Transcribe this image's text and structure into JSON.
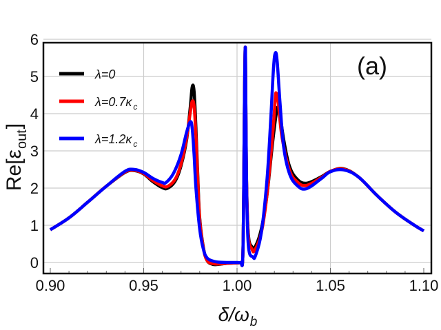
{
  "chart_data": {
    "type": "line",
    "panel_label": "(a)",
    "xlabel": "δ/ω_b",
    "ylabel": "Re[ε_out]",
    "xlim": [
      0.9,
      1.1
    ],
    "ylim": [
      -0.3,
      6
    ],
    "xticks": [
      "0.90",
      "0.95",
      "1.00",
      "1.05",
      "1.10"
    ],
    "yticks": [
      "0",
      "1",
      "2",
      "3",
      "4",
      "5",
      "6"
    ],
    "grid": true,
    "legend_position": "top-left",
    "series": [
      {
        "name": "λ=0",
        "label_main": "λ=0",
        "label_sub": "",
        "color": "#000000",
        "x": [
          0.9,
          0.91,
          0.92,
          0.93,
          0.94,
          0.945,
          0.95,
          0.955,
          0.96,
          0.963,
          0.967,
          0.97,
          0.973,
          0.975,
          0.976,
          0.977,
          0.978,
          0.979,
          0.98,
          0.982,
          0.984,
          0.987,
          0.99,
          0.995,
          1.0,
          1.002,
          1.003,
          1.0035,
          1.004,
          1.0045,
          1.005,
          1.006,
          1.008,
          1.01,
          1.013,
          1.016,
          1.019,
          1.021,
          1.022,
          1.023,
          1.025,
          1.028,
          1.032,
          1.037,
          1.045,
          1.05,
          1.057,
          1.065,
          1.075,
          1.085,
          1.095,
          1.1
        ],
        "y": [
          0.88,
          1.2,
          1.62,
          2.05,
          2.42,
          2.47,
          2.38,
          2.17,
          2.01,
          2.0,
          2.2,
          2.6,
          3.3,
          4.2,
          4.72,
          4.6,
          3.6,
          2.3,
          1.2,
          0.4,
          0.05,
          -0.05,
          -0.05,
          -0.02,
          -0.01,
          0,
          0.05,
          1.5,
          4.5,
          5.7,
          2.5,
          0.8,
          0.42,
          0.45,
          0.9,
          1.8,
          3.2,
          4.0,
          4.18,
          4.0,
          3.3,
          2.6,
          2.25,
          2.13,
          2.3,
          2.45,
          2.52,
          2.3,
          1.8,
          1.35,
          1.0,
          0.85
        ]
      },
      {
        "name": "λ=0.7κ_c",
        "label_main": "λ=0.7κ",
        "label_sub": "c",
        "color": "#ff0000",
        "x": [
          0.9,
          0.91,
          0.92,
          0.93,
          0.94,
          0.945,
          0.95,
          0.955,
          0.96,
          0.963,
          0.967,
          0.97,
          0.973,
          0.975,
          0.976,
          0.977,
          0.978,
          0.979,
          0.98,
          0.982,
          0.984,
          0.987,
          0.99,
          0.995,
          1.0,
          1.002,
          1.003,
          1.0035,
          1.004,
          1.0045,
          1.005,
          1.006,
          1.008,
          1.0095,
          1.013,
          1.016,
          1.019,
          1.0205,
          1.021,
          1.022,
          1.024,
          1.028,
          1.032,
          1.037,
          1.045,
          1.05,
          1.057,
          1.065,
          1.075,
          1.085,
          1.095,
          1.1
        ],
        "y": [
          0.88,
          1.2,
          1.62,
          2.05,
          2.43,
          2.48,
          2.39,
          2.2,
          2.06,
          2.05,
          2.25,
          2.65,
          3.35,
          4.05,
          4.33,
          4.2,
          3.4,
          2.2,
          1.15,
          0.38,
          0.05,
          -0.03,
          -0.04,
          -0.02,
          -0.01,
          0,
          0.05,
          1.5,
          4.5,
          5.7,
          2.5,
          0.75,
          0.36,
          0.33,
          0.8,
          1.8,
          3.4,
          4.4,
          4.55,
          4.35,
          3.4,
          2.5,
          2.18,
          2.07,
          2.28,
          2.45,
          2.51,
          2.3,
          1.8,
          1.35,
          1.0,
          0.85
        ]
      },
      {
        "name": "λ=1.2κ_c",
        "label_main": "λ=1.2κ",
        "label_sub": "c",
        "color": "#0000ff",
        "x": [
          0.9,
          0.91,
          0.92,
          0.93,
          0.94,
          0.945,
          0.95,
          0.955,
          0.96,
          0.962,
          0.966,
          0.97,
          0.973,
          0.975,
          0.976,
          0.977,
          0.978,
          0.98,
          0.982,
          0.984,
          0.987,
          0.99,
          0.995,
          1.0,
          1.002,
          1.003,
          1.0035,
          1.004,
          1.0045,
          1.005,
          1.006,
          1.0085,
          1.01,
          1.013,
          1.016,
          1.018,
          1.0195,
          1.0205,
          1.0215,
          1.023,
          1.025,
          1.028,
          1.032,
          1.037,
          1.045,
          1.05,
          1.057,
          1.065,
          1.075,
          1.085,
          1.095,
          1.1
        ],
        "y": [
          0.88,
          1.2,
          1.62,
          2.05,
          2.45,
          2.5,
          2.42,
          2.26,
          2.15,
          2.15,
          2.4,
          2.9,
          3.5,
          3.78,
          3.6,
          2.9,
          2.0,
          0.9,
          0.35,
          0.12,
          0.04,
          0.01,
          0,
          0,
          0,
          0.05,
          1.5,
          4.5,
          5.7,
          2.5,
          0.5,
          0.15,
          0.2,
          0.8,
          2.2,
          3.8,
          5.2,
          5.63,
          5.4,
          4.3,
          3.1,
          2.4,
          2.08,
          1.98,
          2.25,
          2.44,
          2.49,
          2.3,
          1.8,
          1.35,
          1.0,
          0.85
        ]
      }
    ]
  }
}
